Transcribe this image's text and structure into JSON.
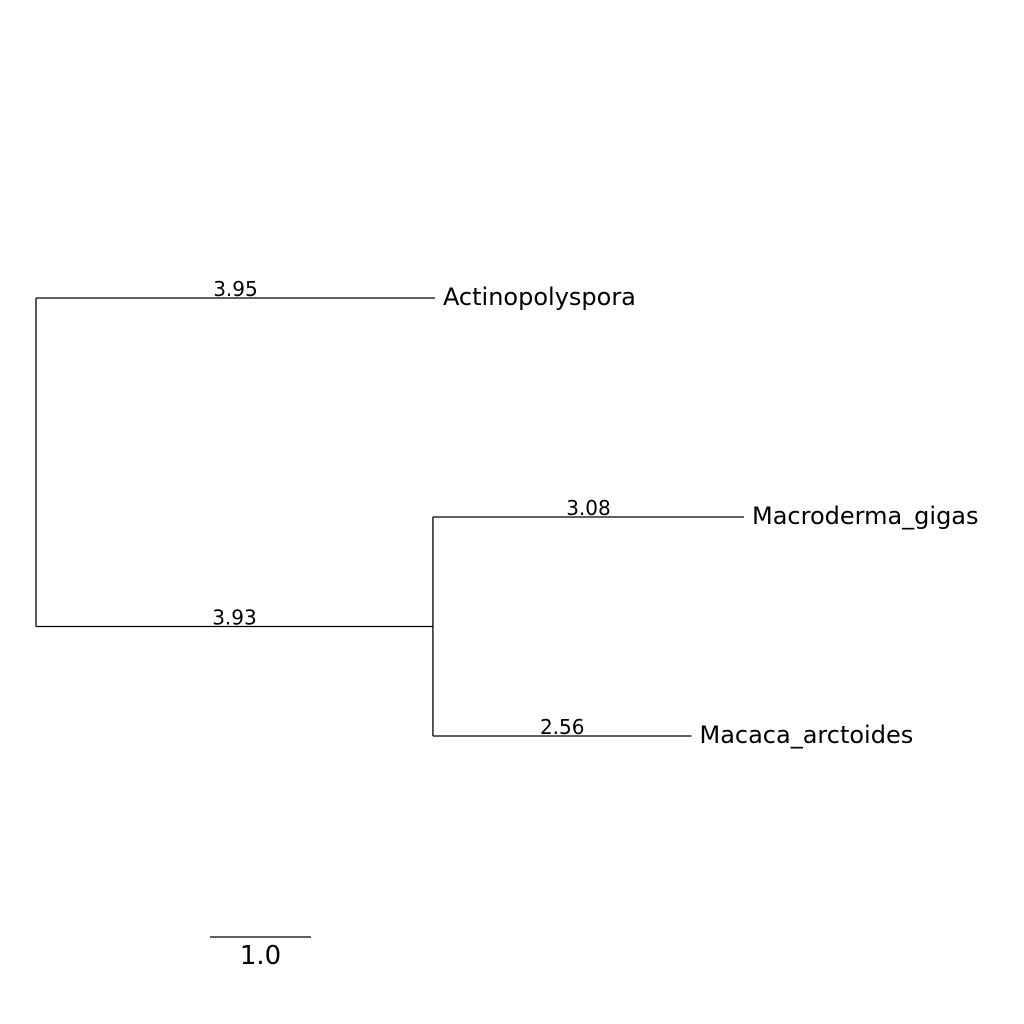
{
  "tree": {
    "leaves": [
      {
        "name": "Actinopolyspora",
        "branch_length": 3.95,
        "branch_label": "3.95"
      },
      {
        "name": "Macroderma_gigas",
        "branch_length": 3.08,
        "branch_label": "3.08"
      },
      {
        "name": "Macaca_arctoides",
        "branch_length": 2.56,
        "branch_label": "2.56"
      }
    ],
    "internal": [
      {
        "name": "",
        "branch_length": 3.93,
        "branch_label": "3.93"
      }
    ],
    "scale_bar": {
      "value": 1.0,
      "label": "1.0"
    }
  },
  "colors": {
    "line": "#000000",
    "text": "#000000",
    "background": "#ffffff"
  }
}
